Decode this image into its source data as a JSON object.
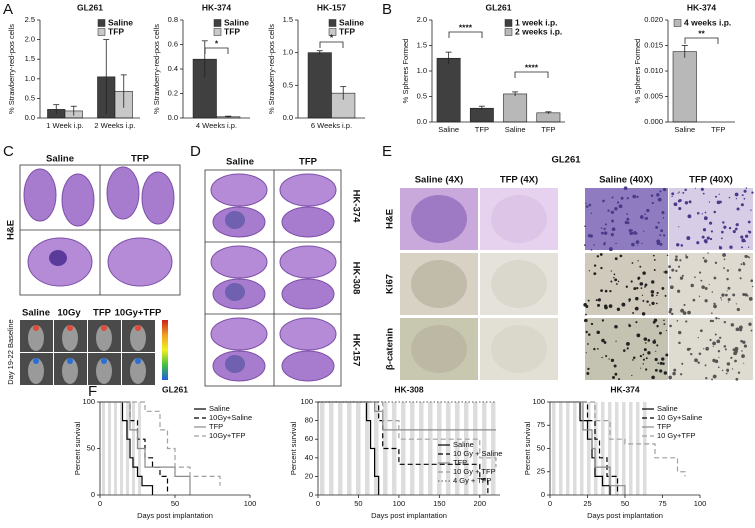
{
  "panels": [
    "A",
    "B",
    "C",
    "D",
    "E",
    "F"
  ],
  "panel_c": {
    "columns": [
      "Saline",
      "TFP"
    ],
    "row": "H&E",
    "ivis_columns": [
      "Saline",
      "10Gy",
      "TFP",
      "10Gy+TFP"
    ],
    "ivis_row": "Day 19-22 Baseline"
  },
  "panel_d": {
    "columns": [
      "Saline",
      "TFP"
    ],
    "rows": [
      "HK-374",
      "HK-308",
      "HK-157"
    ]
  },
  "panel_e": {
    "title": "GL261",
    "columns": [
      "Saline (4X)",
      "TFP (4X)",
      "Saline (40X)",
      "TFP (40X)"
    ],
    "rows": [
      "H&E",
      "Ki67",
      "β-catenin"
    ]
  },
  "chart_data": [
    {
      "type": "bar",
      "title": "GL261",
      "ylabel": "% Strawberry-red-pos cells",
      "categories": [
        "1 Week i.p.",
        "2 Weeks i.p."
      ],
      "series": [
        {
          "name": "Saline",
          "color": "#404040",
          "values": [
            0.22,
            1.05
          ],
          "errors": [
            0.12,
            0.95
          ]
        },
        {
          "name": "TFP",
          "color": "#c8c8c8",
          "values": [
            0.18,
            0.68
          ],
          "errors": [
            0.12,
            0.42
          ]
        }
      ],
      "ylim": [
        0,
        2.5
      ],
      "yticks": [
        {
          "value": 0,
          "label": "0.0"
        },
        {
          "value": 0.5,
          "label": "0.5"
        },
        {
          "value": 1,
          "label": "1.0"
        },
        {
          "value": 1.5,
          "label": "1.5"
        },
        {
          "value": 2,
          "label": "2.0"
        },
        {
          "value": 2.5,
          "label": "2.5"
        }
      ],
      "legend": "upper right"
    },
    {
      "type": "bar",
      "title": "HK-374",
      "ylabel": "% Strawberry-red-pos cells",
      "categories": [
        "4 Weeks i.p."
      ],
      "series": [
        {
          "name": "Saline",
          "color": "#404040",
          "values": [
            0.48
          ],
          "errors": [
            0.15
          ]
        },
        {
          "name": "TFP",
          "color": "#c8c8c8",
          "values": [
            0.01
          ],
          "errors": [
            0.005
          ]
        }
      ],
      "ylim": [
        0,
        0.8
      ],
      "yticks": [
        {
          "value": 0,
          "label": "0.0"
        },
        0.2,
        0.4,
        0.6,
        0.8
      ],
      "legend": "upper right",
      "annotations": [
        "*"
      ]
    },
    {
      "type": "bar",
      "title": "HK-157",
      "ylabel": "% Strawberry-red-pos cells",
      "categories": [
        "6 Weeks i.p."
      ],
      "series": [
        {
          "name": "Saline",
          "color": "#404040",
          "values": [
            1.0
          ],
          "errors": [
            0.03
          ]
        },
        {
          "name": "TFP",
          "color": "#c8c8c8",
          "values": [
            0.38
          ],
          "errors": [
            0.1
          ]
        }
      ],
      "ylim": [
        0,
        1.5
      ],
      "yticks": [
        {
          "value": 0,
          "label": "0.0"
        },
        0.5,
        {
          "value": 1,
          "label": "1.0"
        },
        1.5
      ],
      "legend": "upper right",
      "annotations": [
        "*"
      ]
    },
    {
      "type": "bar",
      "title": "GL261",
      "ylabel": "% Spheres Formed",
      "categories": [
        "Saline",
        "TFP",
        "Saline",
        "TFP"
      ],
      "series": [
        {
          "name": "1 week i.p.",
          "color": "#404040",
          "values": [
            1.25,
            0.27,
            null,
            null
          ],
          "errors": [
            0.12,
            0.04,
            null,
            null
          ]
        },
        {
          "name": "2 weeks i.p.",
          "color": "#b8b8b8",
          "values": [
            null,
            null,
            0.55,
            0.18
          ],
          "errors": [
            null,
            null,
            0.04,
            0.02
          ]
        }
      ],
      "ylim": [
        0,
        2
      ],
      "yticks": [
        {
          "value": 0,
          "label": "0.0"
        },
        0.5,
        {
          "value": 1,
          "label": "1.0"
        },
        1.5,
        {
          "value": 2,
          "label": "2.0"
        }
      ],
      "legend": "upper right",
      "annotations": [
        "****",
        "****"
      ]
    },
    {
      "type": "bar",
      "title": "HK-374",
      "ylabel": "% Spheres Formed",
      "categories": [
        "Saline",
        "TFP"
      ],
      "series": [
        {
          "name": "4 weeks i.p.",
          "color": "#b8b8b8",
          "values": [
            0.0138,
            0
          ],
          "errors": [
            0.0012,
            0
          ]
        }
      ],
      "ylim": [
        0,
        0.02
      ],
      "yticks": [
        {
          "value": 0,
          "label": "0.000"
        },
        {
          "value": 0.005,
          "label": "0.005"
        },
        {
          "value": 0.01,
          "label": "0.010"
        },
        {
          "value": 0.015,
          "label": "0.015"
        },
        {
          "value": 0.02,
          "label": "0.020"
        }
      ],
      "legend": "upper left",
      "annotations": [
        "**"
      ]
    },
    {
      "type": "line",
      "title": "GL261",
      "ylabel": "Percent survival",
      "xlabel": "Days post implantation",
      "series": [
        {
          "name": "Saline",
          "color": "#000000",
          "dash": "solid",
          "x": [
            0,
            15,
            18,
            20,
            22,
            25,
            28,
            35
          ],
          "values": [
            100,
            80,
            60,
            40,
            30,
            20,
            10,
            0
          ]
        },
        {
          "name": "10Gy+Saline",
          "color": "#000000",
          "dash": "dashed",
          "x": [
            0,
            20,
            25,
            30,
            35,
            40,
            45
          ],
          "values": [
            100,
            80,
            60,
            40,
            30,
            20,
            0
          ]
        },
        {
          "name": "TFP",
          "color": "#8a8a8a",
          "dash": "solid",
          "x": [
            0,
            20,
            25,
            30,
            40,
            50,
            60
          ],
          "values": [
            100,
            70,
            50,
            30,
            30,
            20,
            0
          ]
        },
        {
          "name": "10Gy+TFP",
          "color": "#a0a0a0",
          "dash": "dashed",
          "x": [
            0,
            30,
            40,
            45,
            50,
            60,
            80
          ],
          "values": [
            100,
            90,
            70,
            50,
            30,
            20,
            10
          ]
        }
      ],
      "xlim": [
        0,
        100
      ],
      "xticks": [
        0,
        50,
        100
      ],
      "ylim": [
        0,
        100
      ],
      "yticks": [
        0,
        50,
        100
      ],
      "legend": "upper right"
    },
    {
      "type": "line",
      "title": "HK-308",
      "ylabel": "Percent survival",
      "xlabel": "Days post implantation",
      "series": [
        {
          "name": "Saline",
          "color": "#000000",
          "dash": "solid",
          "x": [
            0,
            60,
            65,
            70,
            75
          ],
          "values": [
            100,
            80,
            50,
            20,
            0
          ]
        },
        {
          "name": "10 Gy + Saline",
          "color": "#000000",
          "dash": "dashed",
          "x": [
            0,
            75,
            80,
            100,
            140,
            200,
            210
          ],
          "values": [
            100,
            80,
            50,
            33,
            33,
            17,
            0
          ]
        },
        {
          "name": "TFP",
          "color": "#8a8a8a",
          "dash": "solid",
          "x": [
            0,
            70,
            80,
            100,
            220
          ],
          "values": [
            100,
            90,
            70,
            70,
            70
          ]
        },
        {
          "name": "10 Gy + TFP",
          "color": "#a0a0a0",
          "dash": "dashed",
          "x": [
            0,
            80,
            100,
            150,
            200,
            220
          ],
          "values": [
            100,
            80,
            60,
            60,
            40,
            30
          ]
        },
        {
          "name": "4 Gy + TFP",
          "color": "#777777",
          "dash": "dotted",
          "x": [
            0,
            220
          ],
          "values": [
            100,
            100
          ]
        }
      ],
      "xlim": [
        0,
        225
      ],
      "xticks": [
        0,
        50,
        100,
        150,
        200
      ],
      "ylim": [
        0,
        100
      ],
      "yticks": [
        0,
        20,
        40,
        60,
        80,
        100
      ],
      "legend": "upper right"
    },
    {
      "type": "line",
      "title": "HK-374",
      "ylabel": "Percent survival",
      "xlabel": "Days post implantation",
      "series": [
        {
          "name": "Saline",
          "color": "#000000",
          "dash": "solid",
          "x": [
            0,
            20,
            25,
            28,
            30,
            35,
            40
          ],
          "values": [
            100,
            80,
            60,
            40,
            20,
            10,
            0
          ]
        },
        {
          "name": "10 Gy+Saline",
          "color": "#000000",
          "dash": "dashed",
          "x": [
            0,
            25,
            30,
            33,
            38,
            45
          ],
          "values": [
            100,
            80,
            60,
            40,
            20,
            0
          ]
        },
        {
          "name": "TFP",
          "color": "#8a8a8a",
          "dash": "solid",
          "x": [
            0,
            22,
            28,
            30,
            40,
            50
          ],
          "values": [
            100,
            70,
            50,
            30,
            10,
            0
          ]
        },
        {
          "name": "10 Gy+TFP",
          "color": "#a0a0a0",
          "dash": "dashed",
          "x": [
            0,
            30,
            40,
            50,
            70,
            85,
            90
          ],
          "values": [
            100,
            80,
            60,
            55,
            40,
            25,
            20
          ]
        }
      ],
      "xlim": [
        0,
        100
      ],
      "xticks": [
        0,
        25,
        50,
        75,
        100
      ],
      "ylim": [
        0,
        100
      ],
      "yticks": [
        0,
        25,
        50,
        75,
        100
      ],
      "legend": "upper right"
    }
  ]
}
